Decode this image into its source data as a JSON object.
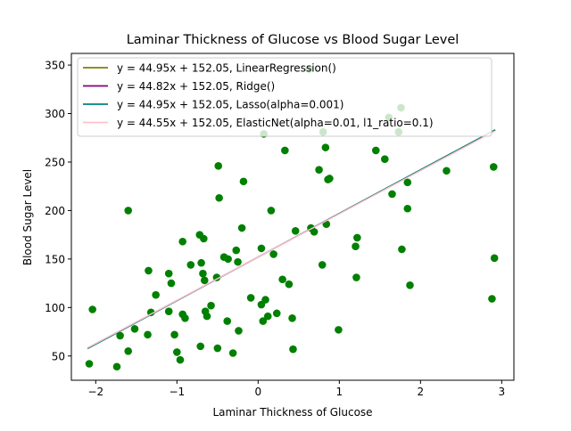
{
  "chart_data": {
    "type": "scatter",
    "title": "Laminar Thickness of Glucose vs Blood Sugar Level",
    "xlabel": "Laminar Thickness of Glucose",
    "ylabel": "Blood Sugar Level",
    "xlim": [
      -2.3,
      3.15
    ],
    "ylim": [
      25,
      362
    ],
    "xticks": [
      -2,
      -1,
      0,
      1,
      2,
      3
    ],
    "yticks": [
      50,
      100,
      150,
      200,
      250,
      300,
      350
    ],
    "grid": false,
    "legend_position": "upper-left",
    "scatter_color": "#008000",
    "points": [
      [
        -2.08,
        42
      ],
      [
        -2.04,
        98
      ],
      [
        -1.74,
        39
      ],
      [
        -1.7,
        71
      ],
      [
        -1.6,
        55
      ],
      [
        -1.6,
        200
      ],
      [
        -1.52,
        78
      ],
      [
        -1.36,
        72
      ],
      [
        -1.35,
        138
      ],
      [
        -1.32,
        95
      ],
      [
        -1.26,
        113
      ],
      [
        -1.1,
        135
      ],
      [
        -1.1,
        96
      ],
      [
        -1.07,
        125
      ],
      [
        -1.03,
        72
      ],
      [
        -1.0,
        54
      ],
      [
        -0.96,
        46
      ],
      [
        -0.93,
        168
      ],
      [
        -0.93,
        93
      ],
      [
        -0.9,
        89
      ],
      [
        -0.83,
        144
      ],
      [
        -0.72,
        175
      ],
      [
        -0.71,
        60
      ],
      [
        -0.7,
        146
      ],
      [
        -0.68,
        135
      ],
      [
        -0.67,
        171
      ],
      [
        -0.66,
        128
      ],
      [
        -0.65,
        96
      ],
      [
        -0.63,
        91
      ],
      [
        -0.58,
        102
      ],
      [
        -0.51,
        131
      ],
      [
        -0.5,
        58
      ],
      [
        -0.49,
        246
      ],
      [
        -0.48,
        213
      ],
      [
        -0.42,
        152
      ],
      [
        -0.38,
        86
      ],
      [
        -0.37,
        150
      ],
      [
        -0.31,
        53
      ],
      [
        -0.27,
        159
      ],
      [
        -0.25,
        147
      ],
      [
        -0.24,
        76
      ],
      [
        -0.2,
        182
      ],
      [
        -0.18,
        230
      ],
      [
        -0.09,
        110
      ],
      [
        0.04,
        161
      ],
      [
        0.04,
        103
      ],
      [
        0.06,
        86
      ],
      [
        0.07,
        279
      ],
      [
        0.09,
        108
      ],
      [
        0.12,
        91
      ],
      [
        0.16,
        200
      ],
      [
        0.19,
        155
      ],
      [
        0.23,
        94
      ],
      [
        0.3,
        129
      ],
      [
        0.33,
        262
      ],
      [
        0.38,
        124
      ],
      [
        0.42,
        89
      ],
      [
        0.43,
        57
      ],
      [
        0.46,
        179
      ],
      [
        0.63,
        346
      ],
      [
        0.65,
        182
      ],
      [
        0.69,
        178
      ],
      [
        0.75,
        242
      ],
      [
        0.79,
        144
      ],
      [
        0.8,
        281
      ],
      [
        0.83,
        265
      ],
      [
        0.84,
        186
      ],
      [
        0.86,
        232
      ],
      [
        0.88,
        233
      ],
      [
        0.99,
        77
      ],
      [
        1.2,
        163
      ],
      [
        1.21,
        131
      ],
      [
        1.22,
        172
      ],
      [
        1.45,
        262
      ],
      [
        1.56,
        253
      ],
      [
        1.61,
        296
      ],
      [
        1.65,
        217
      ],
      [
        1.73,
        281
      ],
      [
        1.76,
        306
      ],
      [
        1.77,
        160
      ],
      [
        1.84,
        229
      ],
      [
        1.84,
        202
      ],
      [
        1.87,
        123
      ],
      [
        2.32,
        241
      ],
      [
        2.88,
        109
      ],
      [
        2.9,
        245
      ],
      [
        2.91,
        151
      ]
    ],
    "series": [
      {
        "name": "y = 44.95x + 152.05, LinearRegression()",
        "slope": 44.95,
        "intercept": 152.05,
        "color": "#808000"
      },
      {
        "name": "y = 44.82x + 152.05, Ridge()",
        "slope": 44.82,
        "intercept": 152.05,
        "color": "#800080"
      },
      {
        "name": "y = 44.95x + 152.05, Lasso(alpha=0.001)",
        "slope": 44.95,
        "intercept": 152.05,
        "color": "#008080"
      },
      {
        "name": "y = 44.55x + 152.05, ElasticNet(alpha=0.01, l1_ratio=0.1)",
        "slope": 44.55,
        "intercept": 152.05,
        "color": "#ffc0cb"
      }
    ],
    "line_x_range": [
      -2.1,
      2.92
    ]
  }
}
